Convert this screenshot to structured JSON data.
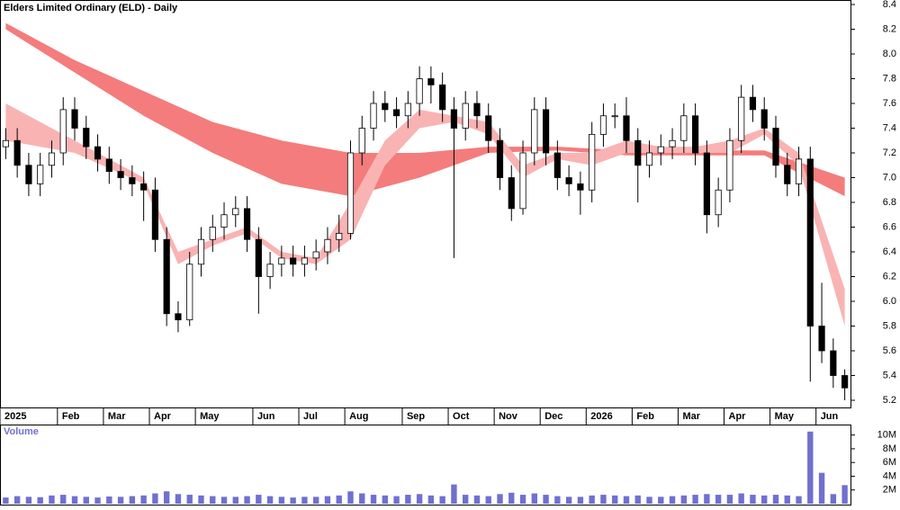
{
  "chart_data": {
    "type": "candlestick",
    "title": "Elders Limited Ordinary (ELD) - Daily",
    "volume_label": "Volume",
    "categories": [
      "2025",
      null,
      null,
      null,
      null,
      "Feb",
      null,
      null,
      null,
      "Mar",
      null,
      null,
      null,
      "Apr",
      null,
      null,
      null,
      "May",
      null,
      null,
      null,
      null,
      "Jun",
      null,
      null,
      null,
      "Jul",
      null,
      null,
      null,
      "Aug",
      null,
      null,
      null,
      null,
      "Sep",
      null,
      null,
      null,
      "Oct",
      null,
      null,
      null,
      "Nov",
      null,
      null,
      null,
      "Dec",
      null,
      null,
      null,
      "2026",
      null,
      null,
      null,
      "Feb",
      null,
      null,
      null,
      "Mar",
      null,
      null,
      null,
      "Apr",
      null,
      null,
      null,
      "May",
      null,
      null,
      null,
      "Jun",
      null,
      null
    ],
    "open": [
      7.25,
      7.3,
      7.1,
      6.95,
      7.1,
      7.2,
      7.55,
      7.4,
      7.25,
      7.15,
      7.05,
      7.0,
      6.95,
      6.9,
      6.5,
      5.9,
      5.85,
      6.3,
      6.5,
      6.6,
      6.7,
      6.75,
      6.5,
      6.2,
      6.3,
      6.35,
      6.3,
      6.35,
      6.4,
      6.5,
      6.55,
      7.2,
      7.4,
      7.6,
      7.55,
      7.5,
      7.6,
      7.8,
      7.75,
      7.55,
      7.4,
      7.6,
      7.5,
      7.3,
      7.0,
      6.75,
      7.2,
      7.55,
      7.2,
      7.0,
      6.95,
      6.9,
      7.35,
      7.5,
      7.5,
      7.3,
      7.1,
      7.2,
      7.25,
      7.3,
      7.5,
      7.2,
      6.7,
      6.9,
      7.3,
      7.65,
      7.55,
      7.4,
      7.1,
      6.95,
      7.15,
      5.8,
      5.6,
      5.4
    ],
    "high": [
      7.4,
      7.4,
      7.2,
      7.2,
      7.3,
      7.65,
      7.65,
      7.5,
      7.35,
      7.25,
      7.15,
      7.1,
      7.05,
      7.0,
      6.6,
      6.0,
      6.4,
      6.6,
      6.7,
      6.8,
      6.85,
      6.85,
      6.6,
      6.4,
      6.45,
      6.45,
      6.45,
      6.5,
      6.6,
      6.7,
      7.3,
      7.5,
      7.7,
      7.7,
      7.65,
      7.7,
      7.9,
      7.9,
      7.85,
      7.65,
      7.7,
      7.7,
      7.6,
      7.4,
      7.1,
      7.3,
      7.65,
      7.65,
      7.3,
      7.1,
      7.05,
      7.45,
      7.6,
      7.6,
      7.65,
      7.4,
      7.3,
      7.35,
      7.4,
      7.6,
      7.6,
      7.3,
      7.0,
      7.4,
      7.75,
      7.75,
      7.65,
      7.5,
      7.2,
      7.25,
      7.25,
      6.15,
      5.7,
      5.45
    ],
    "low": [
      7.15,
      7.0,
      6.85,
      6.85,
      7.0,
      7.1,
      7.3,
      7.15,
      7.05,
      6.95,
      6.9,
      6.85,
      6.65,
      6.4,
      5.8,
      5.75,
      5.8,
      6.2,
      6.4,
      6.5,
      6.6,
      6.4,
      5.9,
      6.1,
      6.2,
      6.2,
      6.2,
      6.25,
      6.3,
      6.4,
      6.5,
      7.1,
      7.3,
      7.45,
      7.4,
      7.4,
      7.5,
      7.6,
      7.45,
      6.35,
      7.3,
      7.4,
      7.2,
      6.9,
      6.65,
      6.7,
      7.1,
      7.1,
      6.9,
      6.85,
      6.7,
      6.8,
      7.25,
      7.4,
      7.2,
      6.8,
      7.0,
      7.1,
      7.15,
      7.2,
      7.1,
      6.55,
      6.6,
      6.8,
      7.2,
      7.45,
      7.3,
      7.0,
      6.85,
      6.85,
      5.35,
      5.5,
      5.3,
      5.2
    ],
    "close": [
      7.3,
      7.1,
      6.95,
      7.1,
      7.2,
      7.55,
      7.4,
      7.25,
      7.15,
      7.05,
      7.0,
      6.95,
      6.9,
      6.5,
      5.9,
      5.85,
      6.3,
      6.5,
      6.6,
      6.7,
      6.75,
      6.5,
      6.2,
      6.3,
      6.35,
      6.3,
      6.35,
      6.4,
      6.5,
      6.55,
      7.2,
      7.4,
      7.6,
      7.55,
      7.5,
      7.6,
      7.8,
      7.75,
      7.55,
      7.4,
      7.6,
      7.5,
      7.3,
      7.0,
      6.75,
      7.2,
      7.55,
      7.2,
      7.0,
      6.95,
      6.9,
      7.35,
      7.5,
      7.5,
      7.3,
      7.1,
      7.2,
      7.25,
      7.3,
      7.5,
      7.2,
      6.7,
      6.9,
      7.3,
      7.65,
      7.55,
      7.4,
      7.1,
      6.95,
      7.15,
      5.8,
      5.6,
      5.4,
      5.3
    ],
    "bands": [
      {
        "color": "#f47c7c",
        "x": [
          0,
          6,
          12,
          18,
          24,
          30,
          36,
          42,
          48,
          54,
          60,
          66,
          73
        ],
        "upper": [
          8.25,
          7.95,
          7.7,
          7.45,
          7.3,
          7.2,
          7.2,
          7.25,
          7.25,
          7.22,
          7.22,
          7.22,
          7.0
        ],
        "lower": [
          8.2,
          7.85,
          7.5,
          7.2,
          6.95,
          6.85,
          7.0,
          7.2,
          7.22,
          7.18,
          7.18,
          7.18,
          6.85
        ]
      },
      {
        "color": "#f9b3b3",
        "x": [
          0,
          6,
          12,
          15,
          18,
          21,
          24,
          27,
          30,
          33,
          36,
          39,
          42,
          45,
          48,
          51,
          54,
          57,
          60,
          63,
          66,
          69,
          73
        ],
        "upper": [
          7.6,
          7.3,
          7.0,
          6.4,
          6.5,
          6.6,
          6.4,
          6.35,
          6.8,
          7.3,
          7.55,
          7.5,
          7.45,
          7.1,
          7.2,
          7.2,
          7.3,
          7.25,
          7.25,
          7.3,
          7.4,
          7.2,
          6.1
        ],
        "lower": [
          7.3,
          7.2,
          6.95,
          6.3,
          6.45,
          6.55,
          6.35,
          6.3,
          6.5,
          7.1,
          7.4,
          7.45,
          7.35,
          7.0,
          7.15,
          7.1,
          7.2,
          7.2,
          7.2,
          7.2,
          7.35,
          7.1,
          5.8
        ]
      }
    ],
    "volume": [
      900000,
      1100000,
      1000000,
      950000,
      1200000,
      1300000,
      1100000,
      1000000,
      900000,
      1050000,
      1000000,
      1100000,
      1200000,
      1500000,
      1800000,
      1400000,
      1300000,
      1200000,
      1100000,
      1000000,
      1000000,
      1100000,
      1300000,
      1100000,
      1000000,
      900000,
      1000000,
      1000000,
      1100000,
      1200000,
      1800000,
      1500000,
      1300000,
      1200000,
      1100000,
      1300000,
      1400000,
      1200000,
      1100000,
      2800000,
      1300000,
      1200000,
      1100000,
      1400000,
      1600000,
      1300000,
      1500000,
      1300000,
      1100000,
      1000000,
      1000000,
      1200000,
      1300000,
      1200000,
      1100000,
      1200000,
      1000000,
      1000000,
      1100000,
      1200000,
      1300000,
      1400000,
      1300000,
      1300000,
      1500000,
      1300000,
      1200000,
      1300000,
      1200000,
      1100000,
      10500000,
      4500000,
      1400000,
      2700000
    ],
    "candle_color": "#000000",
    "volume_color": "#7070d0",
    "ylim": [
      5.2,
      8.4
    ],
    "yticks": [
      5.2,
      5.4,
      5.6,
      5.8,
      {
        "value": 6,
        "label": "6.0"
      },
      6.2,
      6.4,
      6.6,
      6.8,
      {
        "value": 7,
        "label": "7.0"
      },
      7.2,
      7.4,
      7.6,
      7.8,
      {
        "value": 8,
        "label": "8.0"
      },
      8.2,
      8.4
    ],
    "vlim": [
      0,
      11000000
    ],
    "vticks": [
      {
        "value": 2000000,
        "label": "2M"
      },
      {
        "value": 4000000,
        "label": "4M"
      },
      {
        "value": 6000000,
        "label": "6M"
      },
      {
        "value": 8000000,
        "label": "8M"
      },
      {
        "value": 10000000,
        "label": "10M"
      }
    ]
  }
}
